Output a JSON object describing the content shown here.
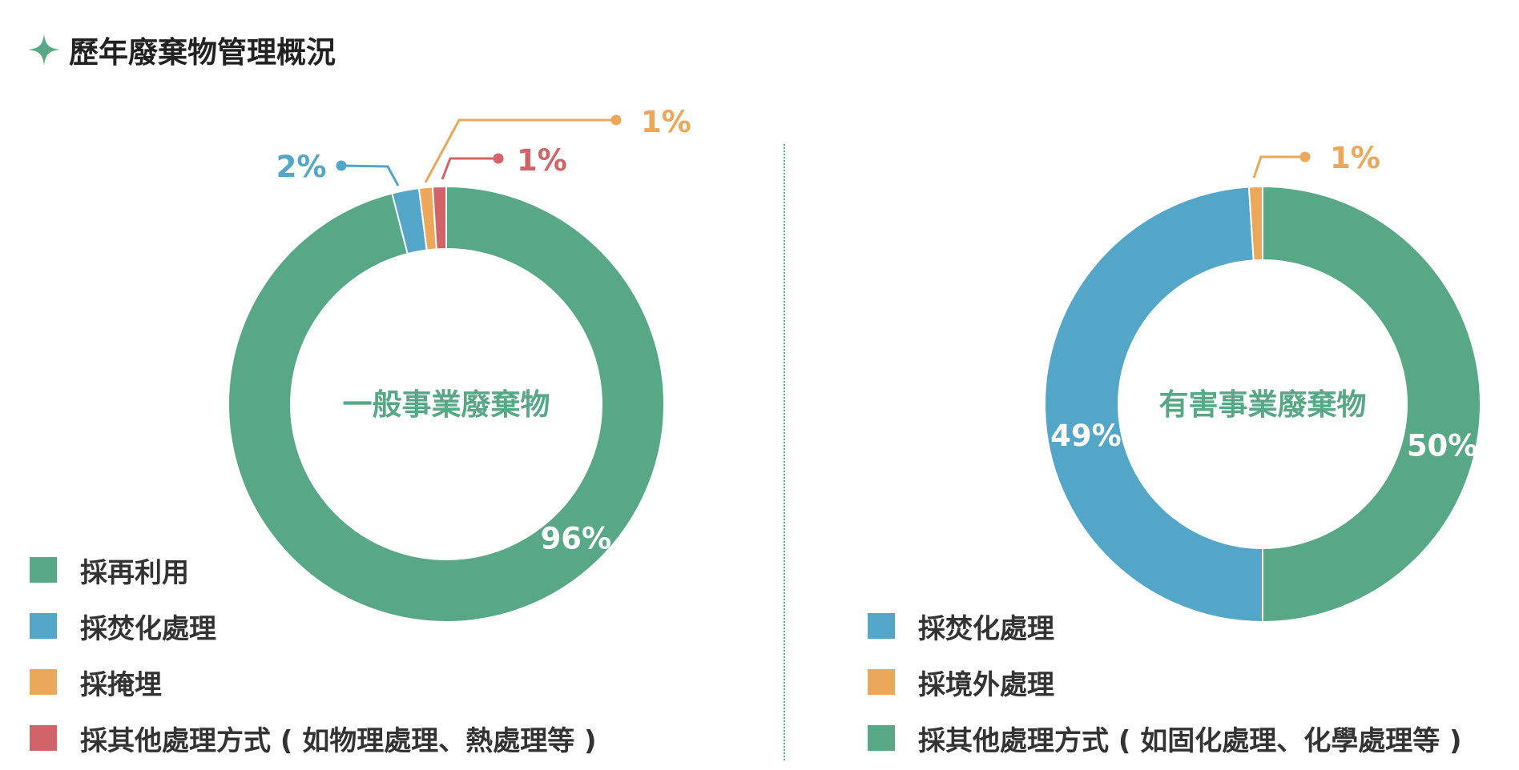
{
  "header": {
    "title": "歷年廢棄物管理概況",
    "icon": "sparkle-icon",
    "icon_color": "#58a887"
  },
  "chart_data": [
    {
      "type": "pie",
      "donut": true,
      "center_label": "一般事業廢棄物",
      "start": "12 o'clock, clockwise",
      "slices": [
        {
          "label": "採再利用",
          "value": 96,
          "value_label": "96%",
          "color": "#58a887"
        },
        {
          "label": "採焚化處理",
          "value": 2,
          "value_label": "2%",
          "color": "#54a6c9"
        },
        {
          "label": "採掩埋",
          "value": 1,
          "value_label": "1%",
          "color": "#eba75a"
        },
        {
          "label": "採其他處理方式 ( 如物理處理、熱處理等 )",
          "value": 1,
          "value_label": "1%",
          "color": "#d06469"
        }
      ],
      "legend": {
        "position": "bottom-left"
      }
    },
    {
      "type": "pie",
      "donut": true,
      "center_label": "有害事業廢棄物",
      "start": "12 o'clock, clockwise",
      "slices": [
        {
          "label": "採其他處理方式 ( 如固化處理、化學處理等 )",
          "value": 50,
          "value_label": "50%",
          "color": "#58a887"
        },
        {
          "label": "採焚化處理",
          "value": 49,
          "value_label": "49%",
          "color": "#54a6c9"
        },
        {
          "label": "採境外處理",
          "value": 1,
          "value_label": "1%",
          "color": "#eba75a"
        }
      ],
      "legend": {
        "position": "bottom-center",
        "items": [
          {
            "label": "採焚化處理",
            "color": "#54a6c9"
          },
          {
            "label": "採境外處理",
            "color": "#eba75a"
          },
          {
            "label": "採其他處理方式 ( 如固化處理、化學處理等 )",
            "color": "#58a887"
          }
        ]
      }
    }
  ]
}
